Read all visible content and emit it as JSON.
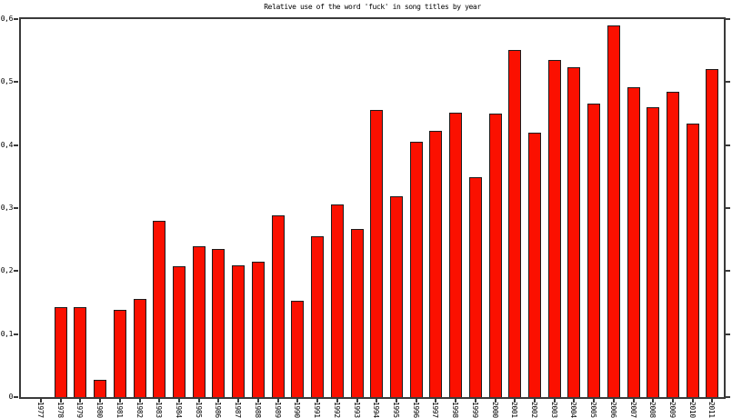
{
  "title": "Relative use of the word 'fuck' in song titles by year",
  "colors": {
    "background": "#ffffff",
    "axis": "#3a3a3a",
    "text": "#000000",
    "bar_fill": "#fb1000",
    "bar_border": "#1c1c1c"
  },
  "chart_data": {
    "type": "bar",
    "title": "Relative use of the word 'fuck' in song titles by year",
    "xlabel": "",
    "ylabel": "",
    "grid": false,
    "legend_position": "none",
    "ylim": [
      0,
      0.6
    ],
    "ytick_values": [
      0,
      0.1,
      0.2,
      0.3,
      0.4,
      0.5,
      0.6
    ],
    "ytick_labels": [
      "0",
      "0,1",
      "0,2",
      "0,3",
      "0,4",
      "0,5",
      "0,6"
    ],
    "categories": [
      1977,
      1978,
      1979,
      1980,
      1981,
      1982,
      1983,
      1984,
      1985,
      1986,
      1987,
      1988,
      1989,
      1990,
      1991,
      1992,
      1993,
      1994,
      1995,
      1996,
      1997,
      1998,
      1999,
      2000,
      2001,
      2002,
      2003,
      2004,
      2005,
      2006,
      2007,
      2008,
      2009,
      2010,
      2011
    ],
    "values": [
      0,
      0.142,
      0.142,
      0.026,
      0.137,
      0.154,
      0.278,
      0.206,
      0.238,
      0.234,
      0.208,
      0.213,
      0.287,
      0.151,
      0.254,
      0.304,
      0.266,
      0.455,
      0.318,
      0.404,
      0.421,
      0.45,
      0.347,
      0.449,
      0.549,
      0.418,
      0.534,
      0.522,
      0.464,
      0.588,
      0.49,
      0.459,
      0.483,
      0.432,
      0.519
    ]
  }
}
